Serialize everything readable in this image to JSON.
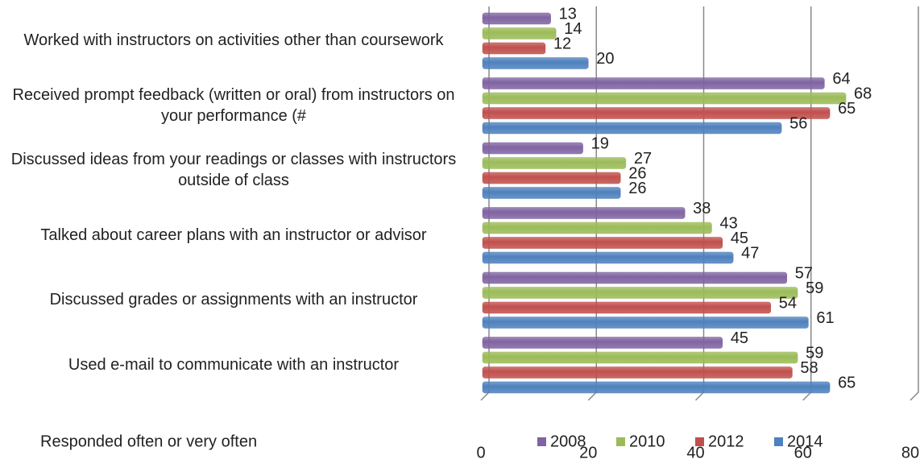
{
  "chart_data": {
    "type": "bar",
    "orientation": "horizontal",
    "x_label": "Responded often or very often",
    "categories": [
      "Worked with instructors on activities other than coursework",
      "Received prompt feedback (written or oral) from instructors on your performance (#",
      "Discussed ideas from your readings or classes with instructors outside of class",
      "Talked about career plans with an instructor or advisor",
      "Discussed grades or assignments with an instructor",
      "Used e-mail to communicate with an instructor"
    ],
    "series": [
      {
        "name": "2008",
        "color": "#8064a2",
        "values": [
          13,
          64,
          19,
          38,
          57,
          45
        ]
      },
      {
        "name": "2010",
        "color": "#9bbb59",
        "values": [
          14,
          68,
          27,
          43,
          59,
          59
        ]
      },
      {
        "name": "2012",
        "color": "#c0504d",
        "values": [
          12,
          65,
          26,
          45,
          54,
          58
        ]
      },
      {
        "name": "2014",
        "color": "#4f81bd",
        "values": [
          20,
          56,
          26,
          47,
          61,
          65
        ]
      }
    ],
    "xlim": [
      0,
      80
    ],
    "xticks": [
      0,
      20,
      40,
      60,
      80
    ],
    "grid": true,
    "legend": "bottom"
  }
}
